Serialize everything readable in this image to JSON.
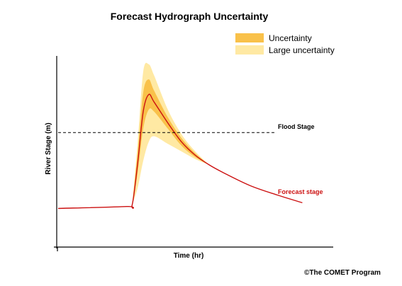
{
  "chart_data": {
    "type": "area",
    "title": "Forecast Hydrograph Uncertainty",
    "xlabel": "Time (hr)",
    "ylabel": "River Stage (m)",
    "xlim": [
      0,
      10
    ],
    "ylim": [
      0,
      10
    ],
    "grid": false,
    "legend_position": "top-right",
    "flood_stage": {
      "label": "Flood Stage",
      "y": 6.0
    },
    "series": [
      {
        "name": "Large uncertainty",
        "color": "#FFE9A3",
        "x": [
          2.7,
          2.9,
          3.1,
          3.3,
          3.5,
          4.0,
          4.5,
          5.0,
          5.5
        ],
        "upper": [
          2.2,
          5.5,
          9.2,
          9.6,
          9.0,
          7.2,
          5.9,
          5.0,
          4.3
        ],
        "lower": [
          2.2,
          3.1,
          4.5,
          5.5,
          5.8,
          5.4,
          5.0,
          4.6,
          4.3
        ]
      },
      {
        "name": "Uncertainty",
        "color": "#F9C14A",
        "x": [
          2.7,
          2.9,
          3.1,
          3.3,
          3.5,
          4.0,
          4.5,
          5.0,
          5.5
        ],
        "upper": [
          2.2,
          5.0,
          8.1,
          8.8,
          8.2,
          6.8,
          5.7,
          4.9,
          4.3
        ],
        "lower": [
          2.2,
          3.9,
          6.2,
          7.2,
          7.1,
          6.2,
          5.3,
          4.7,
          4.3
        ]
      },
      {
        "name": "Forecast stage",
        "color": "#CC1111",
        "x": [
          0.0,
          2.5,
          2.7,
          2.9,
          3.1,
          3.3,
          3.5,
          4.0,
          4.5,
          5.0,
          5.5,
          6.0,
          7.0,
          8.0,
          8.9
        ],
        "y": [
          2.0,
          2.1,
          2.2,
          4.4,
          7.1,
          8.0,
          7.6,
          6.5,
          5.5,
          4.8,
          4.3,
          3.9,
          3.2,
          2.7,
          2.3
        ]
      }
    ],
    "annotations": [
      {
        "text": "Forecast stage"
      }
    ]
  },
  "legend": {
    "items": [
      {
        "label": "Uncertainty",
        "color": "#F9C14A"
      },
      {
        "label": "Large uncertainty",
        "color": "#FFE9A3"
      }
    ]
  },
  "credit": "©The COMET Program"
}
